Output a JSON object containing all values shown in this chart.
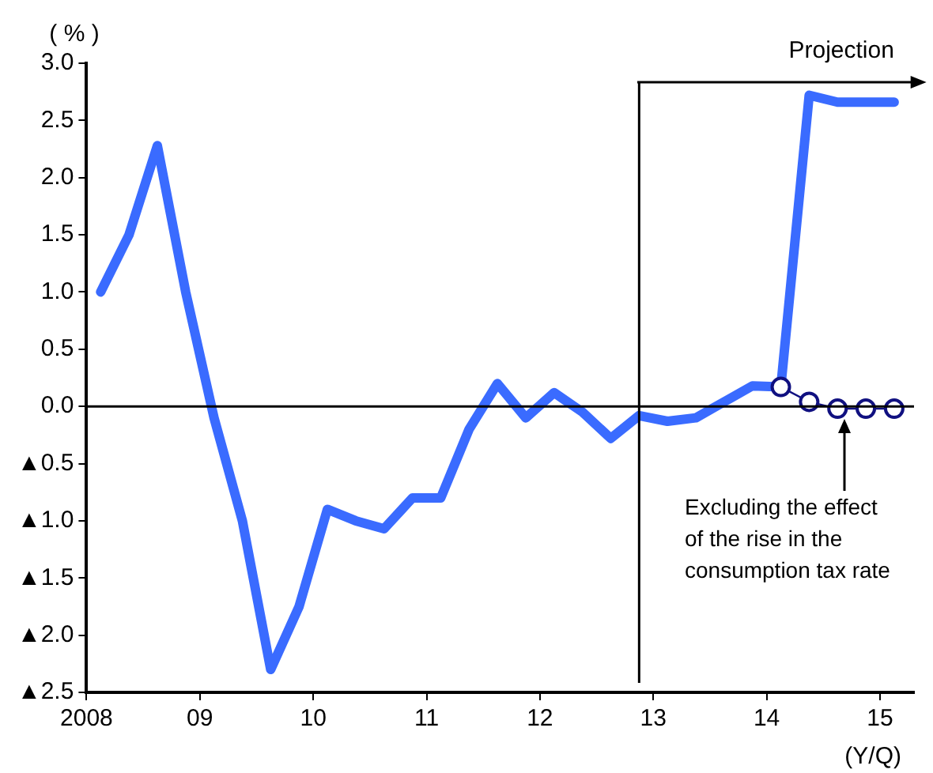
{
  "chart_data": {
    "type": "line",
    "ylabel": "( % )",
    "xlabel": "(Y/Q)",
    "xlim": [
      2008,
      2015.3
    ],
    "xticks": [
      {
        "value": 2008,
        "label": "2008"
      },
      {
        "value": 2009,
        "label": "09"
      },
      {
        "value": 2010,
        "label": "10"
      },
      {
        "value": 2011,
        "label": "11"
      },
      {
        "value": 2012,
        "label": "12"
      },
      {
        "value": 2013,
        "label": "13"
      },
      {
        "value": 2014,
        "label": "14"
      },
      {
        "value": 2015,
        "label": "15"
      }
    ],
    "ylim": [
      -2.5,
      3
    ],
    "yticks": [
      {
        "value": 3,
        "label": "3.0"
      },
      {
        "value": 2.5,
        "label": "2.5"
      },
      {
        "value": 2,
        "label": "2.0"
      },
      {
        "value": 1.5,
        "label": "1.5"
      },
      {
        "value": 1,
        "label": "1.0"
      },
      {
        "value": 0.5,
        "label": "0.5"
      },
      {
        "value": 0,
        "label": "0.0"
      },
      {
        "value": -0.5,
        "label": "▲0.5"
      },
      {
        "value": -1,
        "label": "▲1.0"
      },
      {
        "value": -1.5,
        "label": "▲1.5"
      },
      {
        "value": -2,
        "label": "▲2.0"
      },
      {
        "value": -2.5,
        "label": "▲2.5"
      }
    ],
    "grid": false,
    "legend": false,
    "series": [
      {
        "marker": "none",
        "color": "#3a6bff",
        "x": [
          2008.125,
          2008.375,
          2008.625,
          2008.875,
          2009.125,
          2009.375,
          2009.625,
          2009.875,
          2010.125,
          2010.375,
          2010.625,
          2010.875,
          2011.125,
          2011.375,
          2011.625,
          2011.875,
          2012.125,
          2012.375,
          2012.625,
          2012.875,
          2013.125,
          2013.375,
          2013.625,
          2013.875,
          2014.125,
          2014.375,
          2014.625,
          2014.875,
          2015.125
        ],
        "values": [
          1.0,
          1.5,
          2.28,
          1.0,
          -0.1,
          -1.0,
          -2.3,
          -1.75,
          -0.9,
          -1.0,
          -1.07,
          -0.8,
          -0.8,
          -0.2,
          0.2,
          -0.1,
          0.12,
          -0.05,
          -0.28,
          -0.08,
          -0.13,
          -0.1,
          0.04,
          0.18,
          0.17,
          2.72,
          2.66,
          2.66,
          2.66
        ]
      },
      {
        "marker": "circle",
        "color": "#101080",
        "x": [
          2014.125,
          2014.375,
          2014.625,
          2014.875,
          2015.125
        ],
        "values": [
          0.17,
          0.04,
          -0.02,
          -0.02,
          -0.02
        ]
      }
    ],
    "ref_lines": [
      {
        "axis": "y",
        "value": 0,
        "color": "#000000"
      },
      {
        "axis": "x",
        "value": 2012.875,
        "label": "Projection",
        "color": "#000000"
      }
    ],
    "annotations": [
      "Excluding the effect\nof the rise in the\nconsumption tax rate"
    ]
  }
}
